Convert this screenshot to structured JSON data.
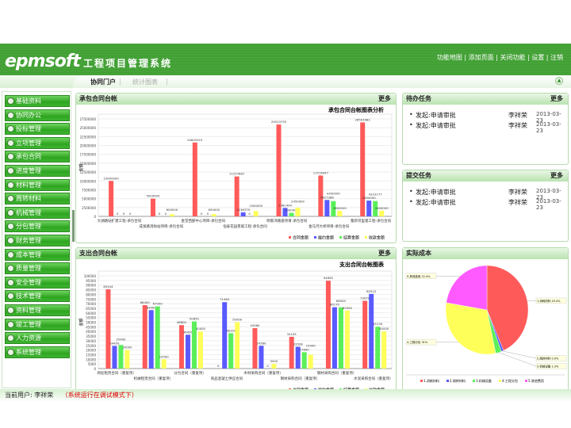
{
  "header": {
    "logo": "epmsoft",
    "title": "工程项目管理系统",
    "links": [
      "功能地图",
      "添加页面",
      "关闭功能",
      "设置",
      "注销"
    ]
  },
  "tabs": [
    {
      "label": "协同门户",
      "active": true
    },
    {
      "label": "统计图表",
      "active": false
    }
  ],
  "sidebar": {
    "items": [
      "基础资料",
      "协同办公",
      "投标管理",
      "立项管理",
      "承包合同",
      "进度管理",
      "材料管理",
      "周转材料",
      "机械管理",
      "分包管理",
      "财务管理",
      "成本管理",
      "质量管理",
      "安全管理",
      "技术管理",
      "资料管理",
      "竣工管理",
      "人力资源",
      "系统管理"
    ]
  },
  "panels": {
    "income": {
      "title": "承包合同台帐",
      "more": "更多"
    },
    "expense": {
      "title": "支出合同台帐",
      "more": "更多"
    },
    "todo": {
      "title": "待办任务",
      "more": "更多",
      "items": [
        {
          "text": "发起:申请审批",
          "user": "李祥荣",
          "date": "2013-03-23"
        },
        {
          "text": "发起:申请审批",
          "user": "李祥荣",
          "date": "2013-03-23"
        }
      ]
    },
    "submitted": {
      "title": "提交任务",
      "more": "更多",
      "items": [
        {
          "text": "发起:申请审批",
          "user": "李祥荣",
          "date": "2013-03-23"
        },
        {
          "text": "发起:申请审批",
          "user": "李祥荣",
          "date": "2013-03-23"
        }
      ]
    },
    "cost": {
      "title": "实际成本"
    }
  },
  "status": {
    "user": "当前用户: 李祥荣",
    "mode": "（系统运行在调试模式下）"
  },
  "chart_data": [
    {
      "type": "bar",
      "title": "承包合同台帐图表分析",
      "ylabel": "金额",
      "ylim": [
        0,
        27500000
      ],
      "ystep": 2500000,
      "grid": true,
      "legend": "bottom-right",
      "categories": [
        "大湖路站扩建工程-承包合同",
        "成发路消防站项目-承包合同",
        "金堂西部中心项目-承包合同",
        "恒泰花园景观工程-承包合同",
        "明家湾路基项目-承包合同",
        "金马河大桥项目-承包合同",
        "蜀新邻里基工程-承包合同"
      ],
      "series": [
        {
          "name": "合同金额",
          "color": "#ff5a5a",
          "values": [
            10000000,
            5000000,
            20843515,
            11257887,
            25913755,
            11516447,
            26504482
          ]
        },
        {
          "name": "履约金额",
          "color": "#5a5aff",
          "values": [
            0,
            0,
            0,
            1136379,
            2381404,
            4627386,
            4450000
          ]
        },
        {
          "name": "结算金额",
          "color": "#5aef5a",
          "values": [
            0,
            0,
            0,
            0,
            1000000,
            4300000,
            4323177
          ]
        },
        {
          "name": "收款金额",
          "color": "#ffff5a",
          "values": [
            0,
            600000,
            650000,
            1500000,
            2450000,
            1600000,
            1600000
          ]
        }
      ]
    },
    {
      "type": "bar",
      "title": "支出合同台帐图表",
      "ylabel": "金额",
      "ylim": [
        0,
        100000
      ],
      "ystep": 5000,
      "grid": true,
      "legend": "bottom-right",
      "categories": [
        "商砼租赁合同（重复项）",
        "机械租赁合同（重复项）",
        "分包合同（重复项）",
        "商品混凝土供应合同",
        "木材采购合同（重复项）",
        "钢材采购合同（重复项）",
        "钢材采购合同（重复项）",
        "水泥采购合同（重复项）"
      ],
      "series": [
        {
          "name": "合同金额",
          "color": "#ff5a5a",
          "values": [
            85444,
            68400,
            46800,
            0,
            43560,
            34195,
            94690,
            73070
          ]
        },
        {
          "name": "履约金额",
          "color": "#5a5aff",
          "values": [
            24450,
            63000,
            36450,
            71583,
            24560,
            23528,
            66170,
            80515
          ]
        },
        {
          "name": "结算金额",
          "color": "#5aef5a",
          "values": [
            25400,
            67000,
            50850,
            38150,
            0,
            17690,
            66000,
            45130
          ]
        },
        {
          "name": "付款金额",
          "color": "#ffff5a",
          "values": [
            20000,
            10000,
            40000,
            50000,
            5000,
            15000,
            62500,
            40000
          ]
        }
      ]
    },
    {
      "type": "pie",
      "legend": "bottom",
      "slices": [
        {
          "name": "1.消耗材料",
          "value": 43.4,
          "color": "#ff5a5a"
        },
        {
          "name": "2.周转材料",
          "value": 0.9,
          "color": "#5a5aff"
        },
        {
          "name": "3.机械设备",
          "value": 2.3,
          "color": "#5aef5a"
        },
        {
          "name": "4.工程分包",
          "value": 31.0,
          "color": "#ffff5a"
        },
        {
          "name": "5.其他费用",
          "value": 22.4,
          "color": "#ff5aff"
        }
      ]
    }
  ]
}
